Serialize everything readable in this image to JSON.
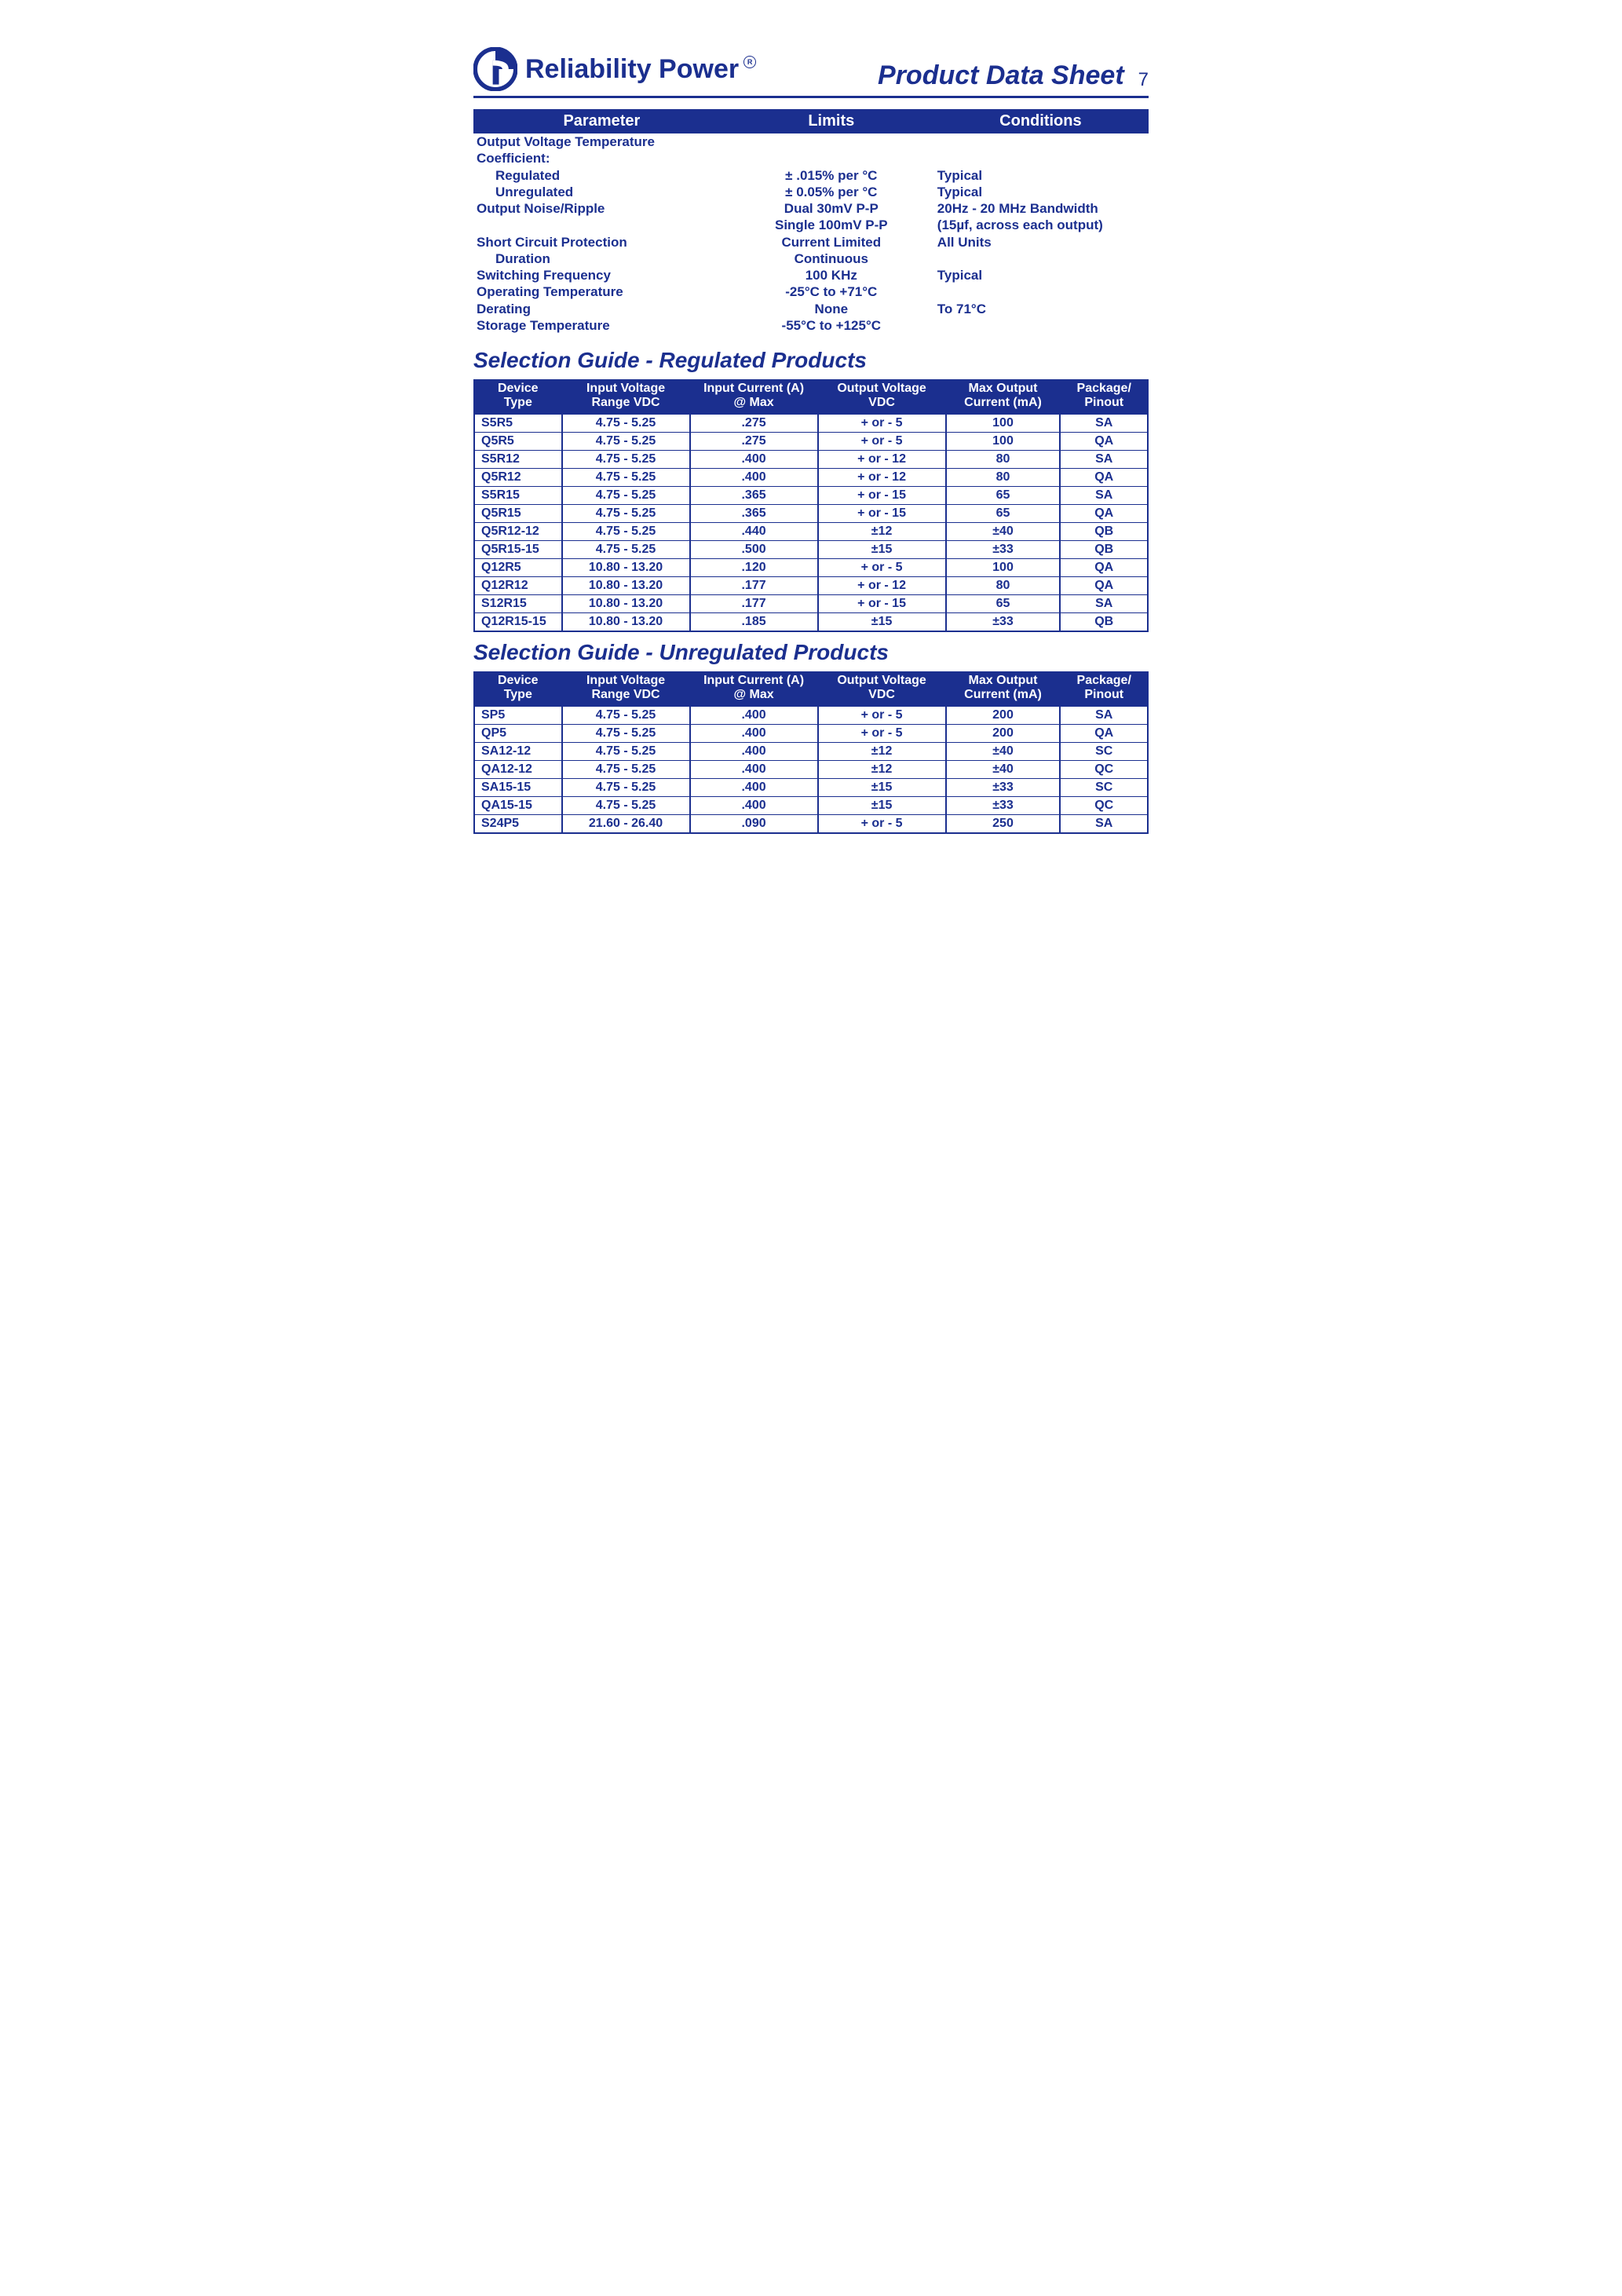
{
  "colors": {
    "primary": "#1b2f8f",
    "bg": "#ffffff",
    "header_bg": "#1b2f8f",
    "header_fg": "#ffffff"
  },
  "page_number": "7",
  "brand": {
    "name": "Reliability Power",
    "reg_symbol": "R",
    "title_right": "Product Data Sheet"
  },
  "spec_table": {
    "headers": [
      "Parameter",
      "Limits",
      "Conditions"
    ],
    "rows": [
      {
        "p": "Output Voltage Temperature",
        "l": "",
        "c": "",
        "indent": 0
      },
      {
        "p": "Coefficient:",
        "l": "",
        "c": "",
        "indent": 0
      },
      {
        "p": "Regulated",
        "l": "± .015% per °C",
        "c": "Typical",
        "indent": 1
      },
      {
        "p": "Unregulated",
        "l": "± 0.05% per °C",
        "c": "Typical",
        "indent": 1
      },
      {
        "p": "Output Noise/Ripple",
        "l": "Dual 30mV P-P",
        "c": "20Hz - 20 MHz Bandwidth",
        "indent": 0
      },
      {
        "p": "",
        "l": "Single 100mV P-P",
        "c": "(15µf, across each output)",
        "indent": 0
      },
      {
        "p": "Short Circuit Protection",
        "l": "Current Limited",
        "c": "All Units",
        "indent": 0
      },
      {
        "p": "Duration",
        "l": "Continuous",
        "c": "",
        "indent": 1
      },
      {
        "p": "Switching Frequency",
        "l": "100 KHz",
        "c": "Typical",
        "indent": 0
      },
      {
        "p": "Operating Temperature",
        "l": "-25°C to +71°C",
        "c": "",
        "indent": 0
      },
      {
        "p": "Derating",
        "l": "None",
        "c": "To 71°C",
        "indent": 0
      },
      {
        "p": "Storage Temperature",
        "l": "-55°C to +125°C",
        "c": "",
        "indent": 0
      }
    ]
  },
  "section_regulated_title": "Selection Guide - Regulated Products",
  "section_unregulated_title": "Selection Guide - Unregulated Products",
  "guide_headers": [
    {
      "l1": "Device",
      "l2": "Type"
    },
    {
      "l1": "Input Voltage",
      "l2": "Range VDC"
    },
    {
      "l1": "Input Current (A)",
      "l2": "@ Max"
    },
    {
      "l1": "Output Voltage",
      "l2": "VDC"
    },
    {
      "l1": "Max Output",
      "l2": "Current (mA)"
    },
    {
      "l1": "Package/",
      "l2": "Pinout"
    }
  ],
  "regulated_rows": [
    [
      "S5R5",
      "4.75 - 5.25",
      ".275",
      "+ or - 5",
      "100",
      "SA"
    ],
    [
      "Q5R5",
      "4.75 - 5.25",
      ".275",
      "+ or - 5",
      "100",
      "QA"
    ],
    [
      "S5R12",
      "4.75 - 5.25",
      ".400",
      "+ or - 12",
      "80",
      "SA"
    ],
    [
      "Q5R12",
      "4.75 - 5.25",
      ".400",
      "+ or - 12",
      "80",
      "QA"
    ],
    [
      "S5R15",
      "4.75 - 5.25",
      ".365",
      "+ or - 15",
      "65",
      "SA"
    ],
    [
      "Q5R15",
      "4.75 - 5.25",
      ".365",
      "+ or - 15",
      "65",
      "QA"
    ],
    [
      "Q5R12-12",
      "4.75 - 5.25",
      ".440",
      "±12",
      "±40",
      "QB"
    ],
    [
      "Q5R15-15",
      "4.75 - 5.25",
      ".500",
      "±15",
      "±33",
      "QB"
    ],
    [
      "Q12R5",
      "10.80 - 13.20",
      ".120",
      "+ or - 5",
      "100",
      "QA"
    ],
    [
      "Q12R12",
      "10.80 - 13.20",
      ".177",
      "+ or - 12",
      "80",
      "QA"
    ],
    [
      "S12R15",
      "10.80 - 13.20",
      ".177",
      "+ or - 15",
      "65",
      "SA"
    ],
    [
      "Q12R15-15",
      "10.80 - 13.20",
      ".185",
      "±15",
      "±33",
      "QB"
    ]
  ],
  "unregulated_rows": [
    [
      "SP5",
      "4.75 - 5.25",
      ".400",
      "+ or - 5",
      "200",
      "SA"
    ],
    [
      "QP5",
      "4.75 - 5.25",
      ".400",
      "+ or - 5",
      "200",
      "QA"
    ],
    [
      "SA12-12",
      "4.75 - 5.25",
      ".400",
      "±12",
      "±40",
      "SC"
    ],
    [
      "QA12-12",
      "4.75 - 5.25",
      ".400",
      "±12",
      "±40",
      "QC"
    ],
    [
      "SA15-15",
      "4.75 - 5.25",
      ".400",
      "±15",
      "±33",
      "SC"
    ],
    [
      "QA15-15",
      "4.75 - 5.25",
      ".400",
      "±15",
      "±33",
      "QC"
    ],
    [
      "S24P5",
      "21.60 - 26.40",
      ".090",
      "+ or - 5",
      "250",
      "SA"
    ]
  ]
}
